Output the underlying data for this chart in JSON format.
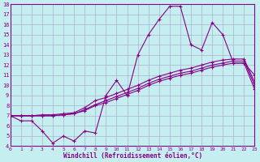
{
  "xlabel": "Windchill (Refroidissement éolien,°C)",
  "bg_color": "#c4eef0",
  "grid_color": "#b0b0cc",
  "line_color": "#880088",
  "xmin": 0,
  "xmax": 23,
  "ymin": 4,
  "ymax": 18,
  "line1_y": [
    7.0,
    6.5,
    6.5,
    5.5,
    4.3,
    5.0,
    4.5,
    5.5,
    5.3,
    9.0,
    10.5,
    9.0,
    13.0,
    15.0,
    16.5,
    17.8,
    17.8,
    14.0,
    13.5,
    16.2,
    15.0,
    12.2,
    12.2,
    11.0
  ],
  "line2_y": [
    7.0,
    7.0,
    7.0,
    7.0,
    7.0,
    7.1,
    7.2,
    7.5,
    8.0,
    8.3,
    8.7,
    9.1,
    9.5,
    10.0,
    10.4,
    10.7,
    11.0,
    11.2,
    11.5,
    11.8,
    12.0,
    12.2,
    12.2,
    9.6
  ],
  "line3_y": [
    7.0,
    7.0,
    7.0,
    7.0,
    7.0,
    7.1,
    7.2,
    7.6,
    8.1,
    8.5,
    8.9,
    9.3,
    9.7,
    10.2,
    10.6,
    10.9,
    11.2,
    11.4,
    11.7,
    12.0,
    12.2,
    12.4,
    12.4,
    10.0
  ],
  "line4_y": [
    7.0,
    7.0,
    7.0,
    7.1,
    7.1,
    7.2,
    7.3,
    7.8,
    8.5,
    8.8,
    9.2,
    9.6,
    10.0,
    10.5,
    10.9,
    11.2,
    11.5,
    11.7,
    12.0,
    12.3,
    12.5,
    12.6,
    12.6,
    10.3
  ]
}
